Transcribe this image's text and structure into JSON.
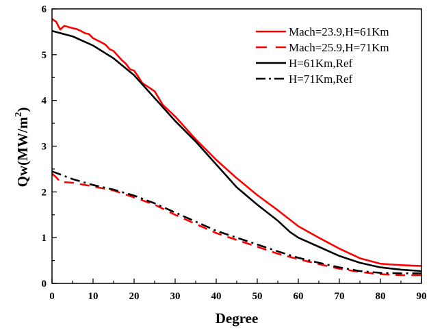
{
  "chart_data": {
    "type": "line",
    "title": "",
    "xlabel": "Degree",
    "ylabel": "Qw(MW/m",
    "ylabel_sup": "2",
    "ylabel_close": ")",
    "xlim": [
      0,
      90
    ],
    "ylim": [
      0,
      6
    ],
    "xticks": [
      0,
      10,
      20,
      30,
      40,
      50,
      60,
      70,
      80,
      90
    ],
    "yticks": [
      0,
      1,
      2,
      3,
      4,
      5,
      6
    ],
    "grid": false,
    "legend": "top-right",
    "series": [
      {
        "name": "Mach=23.9,H=61Km",
        "color": "#ff0000",
        "dash": "solid",
        "x": [
          0,
          1,
          2,
          3,
          5,
          6,
          7,
          8,
          9,
          10,
          12,
          13,
          14,
          15,
          16,
          17,
          18,
          19,
          20,
          21,
          22,
          25,
          27,
          30,
          35,
          40,
          45,
          50,
          55,
          60,
          65,
          70,
          75,
          80,
          85,
          90
        ],
        "y": [
          5.78,
          5.72,
          5.55,
          5.63,
          5.58,
          5.56,
          5.52,
          5.47,
          5.45,
          5.36,
          5.27,
          5.22,
          5.12,
          5.08,
          4.98,
          4.88,
          4.8,
          4.68,
          4.65,
          4.52,
          4.38,
          4.2,
          3.9,
          3.65,
          3.15,
          2.7,
          2.3,
          1.93,
          1.6,
          1.25,
          1.0,
          0.76,
          0.55,
          0.43,
          0.4,
          0.38
        ]
      },
      {
        "name": "Mach=25.9,H=71Km",
        "color": "#ff0000",
        "dash": "dashed",
        "x": [
          0,
          1,
          2,
          5,
          10,
          15,
          20,
          25,
          30,
          35,
          40,
          45,
          50,
          55,
          60,
          65,
          70,
          75,
          80,
          85,
          90
        ],
        "y": [
          2.4,
          2.32,
          2.22,
          2.2,
          2.12,
          2.03,
          1.88,
          1.72,
          1.5,
          1.3,
          1.1,
          0.95,
          0.8,
          0.65,
          0.53,
          0.42,
          0.32,
          0.25,
          0.2,
          0.18,
          0.18
        ]
      },
      {
        "name": "H=61Km,Ref",
        "color": "#000000",
        "dash": "solid",
        "x": [
          0,
          5,
          10,
          15,
          20,
          25,
          30,
          35,
          40,
          45,
          50,
          55,
          58,
          60,
          65,
          70,
          75,
          80,
          85,
          90
        ],
        "y": [
          5.52,
          5.4,
          5.2,
          4.92,
          4.55,
          4.05,
          3.55,
          3.1,
          2.6,
          2.1,
          1.72,
          1.37,
          1.12,
          1.0,
          0.8,
          0.6,
          0.45,
          0.35,
          0.3,
          0.27
        ]
      },
      {
        "name": "H=71Km,Ref",
        "color": "#000000",
        "dash": "dashdot",
        "x": [
          0,
          5,
          10,
          15,
          20,
          25,
          30,
          35,
          40,
          45,
          50,
          55,
          60,
          65,
          70,
          75,
          80,
          85,
          90
        ],
        "y": [
          2.45,
          2.28,
          2.15,
          2.05,
          1.92,
          1.75,
          1.55,
          1.35,
          1.15,
          1.0,
          0.85,
          0.7,
          0.56,
          0.45,
          0.35,
          0.27,
          0.23,
          0.22,
          0.22
        ]
      }
    ]
  }
}
